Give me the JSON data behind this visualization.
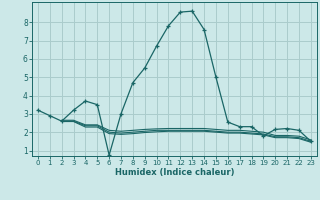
{
  "xlabel": "Humidex (Indice chaleur)",
  "bg_color": "#cce8e8",
  "grid_color": "#aacccc",
  "line_color": "#1a6666",
  "xlim": [
    -0.5,
    23.5
  ],
  "ylim": [
    0.7,
    9.1
  ],
  "xticks": [
    0,
    1,
    2,
    3,
    4,
    5,
    6,
    7,
    8,
    9,
    10,
    11,
    12,
    13,
    14,
    15,
    16,
    17,
    18,
    19,
    20,
    21,
    22,
    23
  ],
  "yticks": [
    1,
    2,
    3,
    4,
    5,
    6,
    7,
    8
  ],
  "line1_x": [
    0,
    1,
    2,
    3,
    4,
    5,
    6,
    7,
    8,
    9,
    10,
    11,
    12,
    13,
    14,
    15,
    16,
    17,
    18,
    19,
    20,
    21,
    22,
    23
  ],
  "line1_y": [
    3.2,
    2.9,
    2.6,
    3.2,
    3.7,
    3.5,
    0.75,
    3.0,
    4.7,
    5.5,
    6.7,
    7.8,
    8.55,
    8.6,
    7.6,
    5.0,
    2.55,
    2.3,
    2.3,
    1.8,
    2.15,
    2.2,
    2.1,
    1.5
  ],
  "line2_x": [
    2,
    3,
    4,
    5,
    6,
    7,
    8,
    9,
    10,
    11,
    12,
    13,
    14,
    15,
    16,
    17,
    18,
    19,
    20,
    21,
    22,
    23
  ],
  "line2_y": [
    2.6,
    2.6,
    2.35,
    2.35,
    2.0,
    1.95,
    2.0,
    2.05,
    2.1,
    2.1,
    2.1,
    2.1,
    2.1,
    2.05,
    2.0,
    2.0,
    1.95,
    1.9,
    1.75,
    1.75,
    1.7,
    1.5
  ],
  "line3_x": [
    2,
    3,
    4,
    5,
    6,
    7,
    8,
    9,
    10,
    11,
    12,
    13,
    14,
    15,
    16,
    17,
    18,
    19,
    20,
    21,
    22,
    23
  ],
  "line3_y": [
    2.65,
    2.65,
    2.4,
    2.4,
    2.1,
    2.05,
    2.1,
    2.15,
    2.18,
    2.2,
    2.2,
    2.2,
    2.2,
    2.15,
    2.1,
    2.1,
    2.05,
    2.0,
    1.82,
    1.82,
    1.78,
    1.58
  ],
  "line4_x": [
    2,
    3,
    4,
    5,
    6,
    7,
    8,
    9,
    10,
    11,
    12,
    13,
    14,
    15,
    16,
    17,
    18,
    19,
    20,
    21,
    22,
    23
  ],
  "line4_y": [
    2.58,
    2.58,
    2.28,
    2.28,
    1.92,
    1.88,
    1.92,
    1.98,
    2.02,
    2.05,
    2.05,
    2.05,
    2.05,
    2.0,
    1.95,
    1.95,
    1.9,
    1.85,
    1.7,
    1.7,
    1.65,
    1.45
  ]
}
